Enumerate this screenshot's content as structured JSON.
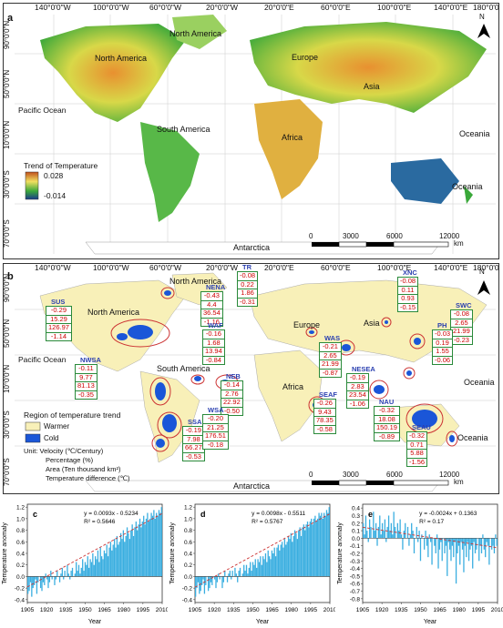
{
  "panel_a": {
    "label": "a",
    "lon_labels": [
      "140°0'0\"W",
      "100°0'0\"W",
      "60°0'0\"W",
      "20°0'0\"W",
      "20°0'0\"E",
      "60°0'0\"E",
      "100°0'0\"E",
      "140°0'0\"E",
      "180°0'0\""
    ],
    "lat_labels": [
      "90°0'0\"N",
      "50°0'0\"N",
      "10°0'0\"N",
      "30°0'0\"S",
      "70°0'0\"S"
    ],
    "continents": [
      "North America",
      "North America",
      "South America",
      "Europe",
      "Asia",
      "Africa",
      "Oceania",
      "Oceania",
      "Antarctica"
    ],
    "oceans": [
      "Pacific Ocean"
    ],
    "legend_title": "Trend of Temperature",
    "legend_max": "0.028",
    "legend_min": "-0.014",
    "scale_ticks": [
      "0",
      "3000",
      "6000",
      "12000"
    ],
    "scale_unit": "km",
    "north": "N",
    "colors": {
      "warm": "#c0501c",
      "mid": "#f0e060",
      "green": "#3aa83a",
      "cold": "#1a3a8a"
    }
  },
  "panel_b": {
    "label": "b",
    "lon_labels": [
      "140°0'0\"W",
      "100°0'0\"W",
      "60°0'0\"W",
      "20°0'0\"W",
      "20°0'0\"E",
      "60°0'0\"E",
      "100°0'0\"E",
      "140°0'0\"E",
      "180°0'0\""
    ],
    "lat_labels": [
      "90°0'0\"N",
      "50°0'0\"N",
      "10°0'0\"N",
      "30°0'0\"S",
      "70°0'0\"S"
    ],
    "continents": [
      "North America",
      "North America",
      "South America",
      "Europe",
      "Asia",
      "Africa",
      "Oceania",
      "Oceania",
      "Antarctica"
    ],
    "oceans": [
      "Pacific Ocean"
    ],
    "legend_title": "Region of temperature trend",
    "legend_warm": "Warmer",
    "legend_cold": "Cold",
    "units": [
      "Unit: Velocity (℃/Century)",
      "Percentage (%)",
      "Area (Ten thousand km²)",
      "Temperature difference (℃)"
    ],
    "scale_ticks": [
      "0",
      "3000",
      "6000",
      "12000"
    ],
    "scale_unit": "km",
    "north": "N",
    "regions": [
      {
        "name": "TR",
        "vals": [
          "-0.08",
          "0.22",
          "1.86",
          "-0.31"
        ]
      },
      {
        "name": "NENA",
        "vals": [
          "-0.43",
          "4.4",
          "36.54",
          "-1.16"
        ]
      },
      {
        "name": "SUS",
        "vals": [
          "-0.29",
          "15.29",
          "126.97",
          "-1.14"
        ]
      },
      {
        "name": "WAF",
        "vals": [
          "-0.16",
          "1.68",
          "13.94",
          "-0.84"
        ]
      },
      {
        "name": "NWSA",
        "vals": [
          "-0.11",
          "9.77",
          "81.13",
          "-0.35"
        ]
      },
      {
        "name": "NEB",
        "vals": [
          "-0.14",
          "2.76",
          "22.92",
          "-0.50"
        ]
      },
      {
        "name": "SSA",
        "vals": [
          "-0.19",
          "7.98",
          "66.27",
          "-0.53"
        ]
      },
      {
        "name": "WSA",
        "vals": [
          "-0.20",
          "21.25",
          "176.51",
          "-0.18"
        ]
      },
      {
        "name": "XNC",
        "vals": [
          "-0.08",
          "0.11",
          "0.93",
          "-0.15"
        ]
      },
      {
        "name": "SWC",
        "vals": [
          "-0.08",
          "2.65",
          "21.99",
          "-0.23"
        ]
      },
      {
        "name": "PH",
        "vals": [
          "-0.03",
          "0.19",
          "1.55",
          "-0.06"
        ]
      },
      {
        "name": "WAS",
        "vals": [
          "-0.21",
          "2.65",
          "21.99",
          "-0.87"
        ]
      },
      {
        "name": "NESEA",
        "vals": [
          "-0.19",
          "2.83",
          "23.54",
          "-1.06"
        ]
      },
      {
        "name": "SEAF",
        "vals": [
          "-0.26",
          "9.43",
          "78.35",
          "-0.58"
        ]
      },
      {
        "name": "NAU",
        "vals": [
          "-0.32",
          "18.08",
          "150.19",
          "-0.89"
        ]
      },
      {
        "name": "SEAU",
        "vals": [
          "-0.32",
          "0.71",
          "5.88",
          "-1.56"
        ]
      }
    ]
  },
  "chart_data": [
    {
      "type": "bar",
      "label": "c",
      "xlabel": "Year",
      "ylabel": "Temperature anomaly",
      "xticks": [
        "1905",
        "1920",
        "1935",
        "1950",
        "1965",
        "1980",
        "1995",
        "2010"
      ],
      "yticks": [
        "-0.4",
        "-0.2",
        "0.0",
        "0.2",
        "0.4",
        "0.6",
        "0.8",
        "1.0",
        "1.2"
      ],
      "ylim": [
        -0.45,
        1.25
      ],
      "equation": "y = 0.0093x - 0.5234",
      "r2": "R² = 0.5646",
      "values": [
        -0.3,
        -0.25,
        -0.1,
        -0.35,
        -0.2,
        -0.15,
        -0.05,
        -0.3,
        -0.1,
        0.0,
        -0.2,
        -0.25,
        -0.1,
        -0.15,
        0.05,
        -0.05,
        -0.2,
        -0.1,
        0.1,
        -0.05,
        0.0,
        -0.15,
        -0.05,
        0.1,
        0.0,
        -0.1,
        0.05,
        0.15,
        -0.05,
        0.1,
        0.0,
        0.2,
        0.05,
        -0.05,
        0.1,
        0.15,
        0.0,
        0.05,
        0.25,
        0.1,
        0.2,
        0.05,
        0.15,
        0.3,
        0.1,
        0.25,
        0.2,
        0.35,
        0.15,
        0.3,
        0.25,
        0.4,
        0.2,
        0.35,
        0.3,
        0.45,
        0.25,
        0.5,
        0.35,
        0.3,
        0.45,
        0.4,
        0.55,
        0.35,
        0.5,
        0.6,
        0.45,
        0.55,
        0.65,
        0.5,
        0.7,
        0.55,
        0.6,
        0.75,
        0.65,
        0.8,
        0.6,
        0.7,
        0.85,
        0.75,
        0.65,
        0.8,
        0.9,
        0.7,
        0.85,
        0.95,
        0.8,
        0.9,
        1.0,
        0.85,
        0.95,
        1.05,
        0.9,
        1.0,
        1.1,
        0.95,
        1.0,
        1.1,
        1.05,
        1.15,
        1.0,
        1.1,
        1.05,
        1.15,
        1.1,
        1.2
      ]
    },
    {
      "type": "bar",
      "label": "d",
      "xlabel": "Year",
      "ylabel": "Temperature anomaly",
      "xticks": [
        "1905",
        "1920",
        "1935",
        "1950",
        "1965",
        "1980",
        "1995",
        "2010"
      ],
      "yticks": [
        "-0.4",
        "-0.2",
        "0.0",
        "0.2",
        "0.4",
        "0.6",
        "0.8",
        "1.0",
        "1.2"
      ],
      "ylim": [
        -0.45,
        1.25
      ],
      "equation": "y = 0.0098x - 0.5511",
      "r2": "R² = 0.5767",
      "values": [
        -0.35,
        -0.2,
        -0.1,
        -0.3,
        -0.25,
        -0.15,
        -0.05,
        -0.3,
        -0.15,
        0.0,
        -0.25,
        -0.2,
        -0.1,
        -0.15,
        0.0,
        -0.05,
        -0.2,
        -0.1,
        0.05,
        -0.05,
        0.0,
        -0.2,
        -0.1,
        0.1,
        0.0,
        -0.1,
        0.05,
        0.1,
        -0.05,
        0.1,
        0.0,
        0.15,
        0.05,
        -0.1,
        0.1,
        0.15,
        0.0,
        0.05,
        0.2,
        0.1,
        0.2,
        0.05,
        0.15,
        0.25,
        0.1,
        0.25,
        0.2,
        0.3,
        0.15,
        0.3,
        0.25,
        0.35,
        0.2,
        0.35,
        0.3,
        0.4,
        0.25,
        0.45,
        0.35,
        0.3,
        0.45,
        0.4,
        0.5,
        0.35,
        0.5,
        0.55,
        0.45,
        0.55,
        0.6,
        0.5,
        0.65,
        0.55,
        0.6,
        0.7,
        0.65,
        0.75,
        0.6,
        0.7,
        0.8,
        0.75,
        0.65,
        0.8,
        0.85,
        0.7,
        0.85,
        0.9,
        0.8,
        0.9,
        0.95,
        0.85,
        0.95,
        1.0,
        0.9,
        1.0,
        1.05,
        0.95,
        1.0,
        1.1,
        1.05,
        1.1,
        1.0,
        1.1,
        1.05,
        1.15,
        1.1,
        1.2
      ]
    },
    {
      "type": "bar",
      "label": "e",
      "xlabel": "Year",
      "ylabel": "Temperature anomaly",
      "xticks": [
        "1905",
        "1920",
        "1935",
        "1950",
        "1965",
        "1980",
        "1995",
        "2010"
      ],
      "yticks": [
        "-0.8",
        "-0.7",
        "-0.6",
        "-0.5",
        "-0.4",
        "-0.3",
        "-0.2",
        "-0.1",
        "0.0",
        "0.1",
        "0.2",
        "0.3",
        "0.4"
      ],
      "ylim": [
        -0.85,
        0.45
      ],
      "equation": "y = -0.0024x + 0.1363",
      "r2": "R² = 0.17",
      "values": [
        0.2,
        0.05,
        0.3,
        0.1,
        -0.05,
        0.25,
        0.15,
        0.0,
        0.35,
        0.1,
        0.2,
        -0.1,
        0.15,
        0.3,
        0.05,
        0.2,
        0.1,
        0.25,
        -0.05,
        0.15,
        0.3,
        0.1,
        0.2,
        0.05,
        0.35,
        0.15,
        0.0,
        0.2,
        0.1,
        0.25,
        0.05,
        -0.15,
        0.1,
        0.2,
        0.0,
        0.15,
        -0.1,
        0.05,
        0.2,
        0.1,
        -0.2,
        0.0,
        0.15,
        -0.05,
        0.1,
        -0.3,
        0.05,
        0.0,
        -0.15,
        0.1,
        -0.1,
        -0.25,
        0.05,
        -0.05,
        -0.35,
        0.0,
        -0.1,
        -0.2,
        0.05,
        -0.4,
        -0.15,
        -0.05,
        -0.3,
        0.0,
        -0.2,
        -0.1,
        -0.5,
        -0.05,
        -0.15,
        -0.3,
        -0.1,
        -0.25,
        -0.05,
        -0.6,
        -0.2,
        -0.1,
        -0.35,
        -0.05,
        -0.15,
        -0.45,
        -0.1,
        -0.25,
        -0.05,
        -0.3,
        -0.15,
        -0.1,
        -0.4,
        -0.05,
        -0.2,
        -0.15,
        0.0,
        -0.3,
        -0.1,
        -0.2,
        0.05,
        -0.15,
        -0.25,
        -0.05,
        -0.1,
        -0.35,
        0.0,
        -0.15,
        -0.1,
        -0.2,
        0.05,
        -0.1
      ]
    }
  ]
}
